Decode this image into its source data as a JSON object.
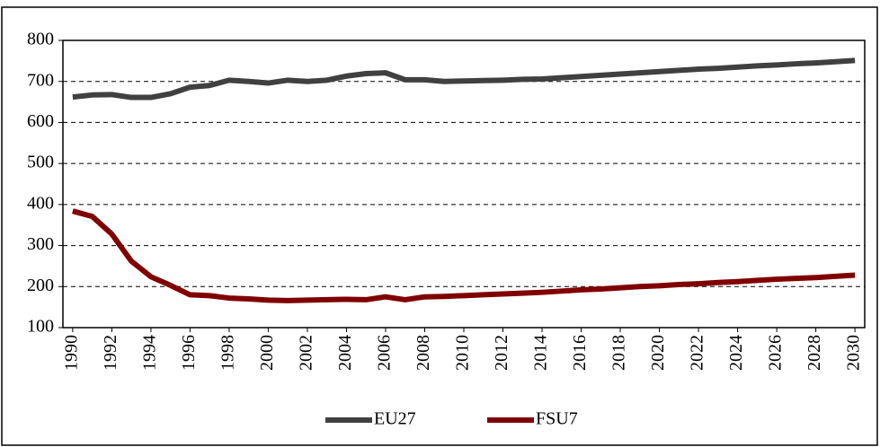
{
  "chart_data": {
    "type": "line",
    "x": [
      1990,
      1991,
      1992,
      1993,
      1994,
      1995,
      1996,
      1997,
      1998,
      1999,
      2000,
      2001,
      2002,
      2003,
      2004,
      2005,
      2006,
      2007,
      2008,
      2009,
      2010,
      2011,
      2012,
      2013,
      2014,
      2015,
      2016,
      2017,
      2018,
      2019,
      2020,
      2021,
      2022,
      2023,
      2024,
      2025,
      2026,
      2027,
      2028,
      2029,
      2030
    ],
    "series": [
      {
        "name": "EU27",
        "color": "#404040",
        "values": [
          662,
          667,
          668,
          661,
          661,
          670,
          686,
          690,
          703,
          700,
          696,
          703,
          700,
          703,
          713,
          719,
          721,
          704,
          704,
          700,
          701,
          702,
          703,
          705,
          706,
          709,
          712,
          715,
          718,
          721,
          724,
          727,
          730,
          732,
          735,
          738,
          740,
          743,
          745,
          748,
          751
        ]
      },
      {
        "name": "FSU7",
        "color": "#800000",
        "values": [
          384,
          371,
          328,
          262,
          224,
          203,
          180,
          178,
          172,
          170,
          167,
          166,
          167,
          168,
          169,
          168,
          175,
          168,
          175,
          176,
          178,
          180,
          182,
          184,
          186,
          189,
          192,
          194,
          197,
          200,
          202,
          205,
          207,
          210,
          212,
          215,
          218,
          220,
          222,
          225,
          228
        ]
      }
    ],
    "xlim": [
      1989.5,
      2030.5
    ],
    "xticks": [
      1990,
      1992,
      1994,
      1996,
      1998,
      2000,
      2002,
      2004,
      2006,
      2008,
      2010,
      2012,
      2014,
      2016,
      2018,
      2020,
      2022,
      2024,
      2026,
      2028,
      2030
    ],
    "ylim": [
      100,
      800
    ],
    "yticks": [
      100,
      200,
      300,
      400,
      500,
      600,
      700,
      800
    ],
    "grid": true,
    "legend": "bottom"
  }
}
